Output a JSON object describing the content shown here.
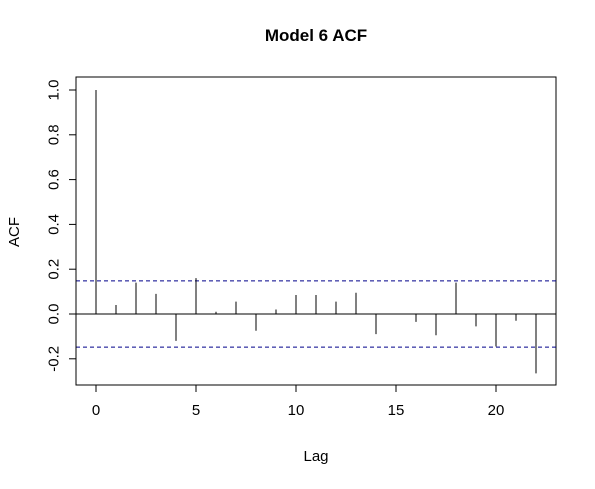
{
  "chart_data": {
    "type": "bar",
    "title": "Model 6 ACF",
    "xlabel": "Lag",
    "ylabel": "ACF",
    "xlim": [
      0,
      22
    ],
    "ylim": [
      -0.27,
      1.0
    ],
    "x_ticks": [
      0,
      5,
      10,
      15,
      20
    ],
    "x_tick_labels": [
      "0",
      "5",
      "10",
      "15",
      "20"
    ],
    "y_ticks": [
      -0.2,
      0.0,
      0.2,
      0.4,
      0.6,
      0.8,
      1.0
    ],
    "y_tick_labels": [
      "-0.2",
      "0.0",
      "0.2",
      "0.4",
      "0.6",
      "0.8",
      "1.0"
    ],
    "lags": [
      0,
      1,
      2,
      3,
      4,
      5,
      6,
      7,
      8,
      9,
      10,
      11,
      12,
      13,
      14,
      15,
      16,
      17,
      18,
      19,
      20,
      21,
      22
    ],
    "acf": [
      1.0,
      0.04,
      0.14,
      0.09,
      -0.12,
      0.16,
      0.01,
      0.055,
      -0.075,
      0.02,
      0.085,
      0.085,
      0.055,
      0.095,
      -0.09,
      0.0,
      -0.035,
      -0.095,
      0.14,
      -0.055,
      -0.145,
      -0.03,
      -0.265
    ],
    "confidence_bound": 0.148,
    "zero_line": true,
    "grid": false,
    "colors": {
      "bars": "#000000",
      "confidence_lines": "#00008B",
      "axes": "#000000",
      "background": "#ffffff"
    }
  }
}
